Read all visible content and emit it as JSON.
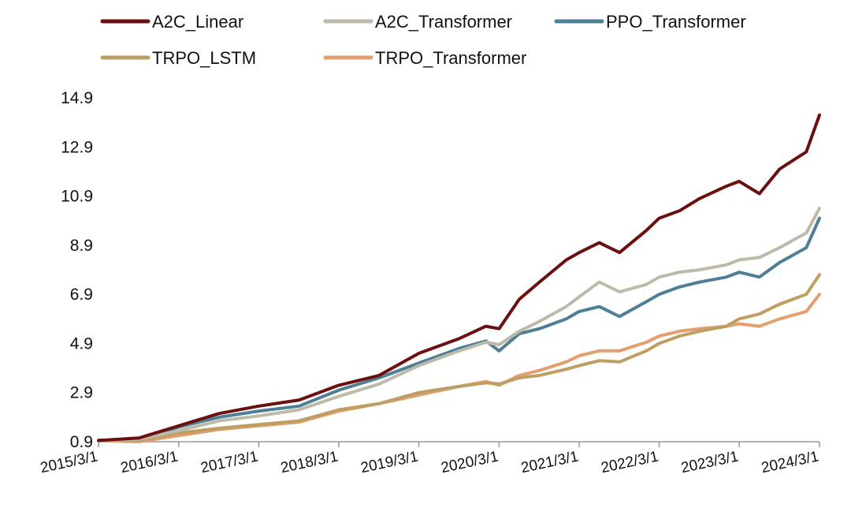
{
  "chart_data": {
    "type": "line",
    "title": "",
    "xlabel": "",
    "ylabel": "",
    "x_ticks": [
      "2015/3/1",
      "2016/3/1",
      "2017/3/1",
      "2018/3/1",
      "2019/3/1",
      "2020/3/1",
      "2021/3/1",
      "2022/3/1",
      "2023/3/1",
      "2024/3/1"
    ],
    "y_ticks": [
      "0.9",
      "2.9",
      "4.9",
      "6.9",
      "8.9",
      "10.9",
      "12.9",
      "14.9"
    ],
    "ylim": [
      0.9,
      14.9
    ],
    "xlim": [
      "2015/3/1",
      "2024/3/1"
    ],
    "legend_position": "top",
    "grid": false,
    "series": [
      {
        "name": "A2C_Linear",
        "color": "#6b0f0f",
        "x": [
          "2015/3/1",
          "2015/9/1",
          "2016/3/1",
          "2016/9/1",
          "2017/3/1",
          "2017/9/1",
          "2018/3/1",
          "2018/9/1",
          "2019/3/1",
          "2019/9/1",
          "2020/1/1",
          "2020/3/1",
          "2020/6/1",
          "2020/9/1",
          "2021/1/1",
          "2021/3/1",
          "2021/6/1",
          "2021/9/1",
          "2022/1/1",
          "2022/3/1",
          "2022/6/1",
          "2022/9/1",
          "2023/1/1",
          "2023/3/1",
          "2023/6/1",
          "2023/9/1",
          "2024/1/1",
          "2024/3/1"
        ],
        "y": [
          0.95,
          1.05,
          1.55,
          2.05,
          2.35,
          2.6,
          3.2,
          3.6,
          4.5,
          5.1,
          5.6,
          5.5,
          6.7,
          7.4,
          8.3,
          8.6,
          9.0,
          8.6,
          9.5,
          10.0,
          10.3,
          10.8,
          11.3,
          11.5,
          11.0,
          12.0,
          12.7,
          14.2
        ]
      },
      {
        "name": "A2C_Transformer",
        "color": "#bdbaa9",
        "x": [
          "2015/3/1",
          "2015/9/1",
          "2016/3/1",
          "2016/9/1",
          "2017/3/1",
          "2017/9/1",
          "2018/3/1",
          "2018/9/1",
          "2019/3/1",
          "2019/9/1",
          "2020/1/1",
          "2020/3/1",
          "2020/6/1",
          "2020/9/1",
          "2021/1/1",
          "2021/3/1",
          "2021/6/1",
          "2021/9/1",
          "2022/1/1",
          "2022/3/1",
          "2022/6/1",
          "2022/9/1",
          "2023/1/1",
          "2023/3/1",
          "2023/6/1",
          "2023/9/1",
          "2024/1/1",
          "2024/3/1"
        ],
        "y": [
          0.95,
          1.0,
          1.35,
          1.75,
          1.95,
          2.2,
          2.75,
          3.25,
          4.0,
          4.6,
          4.95,
          4.85,
          5.4,
          5.8,
          6.4,
          6.8,
          7.4,
          7.0,
          7.3,
          7.6,
          7.8,
          7.9,
          8.1,
          8.3,
          8.4,
          8.8,
          9.4,
          10.4
        ]
      },
      {
        "name": "PPO_Transformer",
        "color": "#4e7f96",
        "x": [
          "2015/3/1",
          "2015/9/1",
          "2016/3/1",
          "2016/9/1",
          "2017/3/1",
          "2017/9/1",
          "2018/3/1",
          "2018/9/1",
          "2019/3/1",
          "2019/9/1",
          "2020/1/1",
          "2020/3/1",
          "2020/6/1",
          "2020/9/1",
          "2021/1/1",
          "2021/3/1",
          "2021/6/1",
          "2021/9/1",
          "2022/1/1",
          "2022/3/1",
          "2022/6/1",
          "2022/9/1",
          "2023/1/1",
          "2023/3/1",
          "2023/6/1",
          "2023/9/1",
          "2024/1/1",
          "2024/3/1"
        ],
        "y": [
          0.95,
          1.02,
          1.5,
          1.9,
          2.15,
          2.35,
          3.0,
          3.5,
          4.1,
          4.7,
          5.0,
          4.6,
          5.3,
          5.5,
          5.9,
          6.2,
          6.4,
          6.0,
          6.6,
          6.9,
          7.2,
          7.4,
          7.6,
          7.8,
          7.6,
          8.2,
          8.8,
          10.0
        ]
      },
      {
        "name": "TRPO_LSTM",
        "color": "#bd9e63",
        "x": [
          "2015/3/1",
          "2015/9/1",
          "2016/3/1",
          "2016/9/1",
          "2017/3/1",
          "2017/9/1",
          "2018/3/1",
          "2018/9/1",
          "2019/3/1",
          "2019/9/1",
          "2020/1/1",
          "2020/3/1",
          "2020/6/1",
          "2020/9/1",
          "2021/1/1",
          "2021/3/1",
          "2021/6/1",
          "2021/9/1",
          "2022/1/1",
          "2022/3/1",
          "2022/6/1",
          "2022/9/1",
          "2023/1/1",
          "2023/3/1",
          "2023/6/1",
          "2023/9/1",
          "2024/1/1",
          "2024/3/1"
        ],
        "y": [
          0.95,
          0.95,
          1.25,
          1.45,
          1.6,
          1.75,
          2.2,
          2.45,
          2.9,
          3.15,
          3.3,
          3.25,
          3.5,
          3.6,
          3.85,
          4.0,
          4.2,
          4.15,
          4.6,
          4.9,
          5.2,
          5.4,
          5.6,
          5.9,
          6.1,
          6.5,
          6.9,
          7.7
        ]
      },
      {
        "name": "TRPO_Transformer",
        "color": "#e39f6e",
        "x": [
          "2015/3/1",
          "2015/9/1",
          "2016/3/1",
          "2016/9/1",
          "2017/3/1",
          "2017/9/1",
          "2018/3/1",
          "2018/9/1",
          "2019/3/1",
          "2019/9/1",
          "2020/1/1",
          "2020/3/1",
          "2020/6/1",
          "2020/9/1",
          "2021/1/1",
          "2021/3/1",
          "2021/6/1",
          "2021/9/1",
          "2022/1/1",
          "2022/3/1",
          "2022/6/1",
          "2022/9/1",
          "2023/1/1",
          "2023/3/1",
          "2023/6/1",
          "2023/9/1",
          "2024/1/1",
          "2024/3/1"
        ],
        "y": [
          0.95,
          0.9,
          1.15,
          1.4,
          1.55,
          1.7,
          2.15,
          2.45,
          2.8,
          3.15,
          3.35,
          3.2,
          3.6,
          3.8,
          4.15,
          4.4,
          4.6,
          4.6,
          4.95,
          5.2,
          5.4,
          5.5,
          5.6,
          5.7,
          5.6,
          5.9,
          6.2,
          6.9
        ]
      }
    ]
  }
}
